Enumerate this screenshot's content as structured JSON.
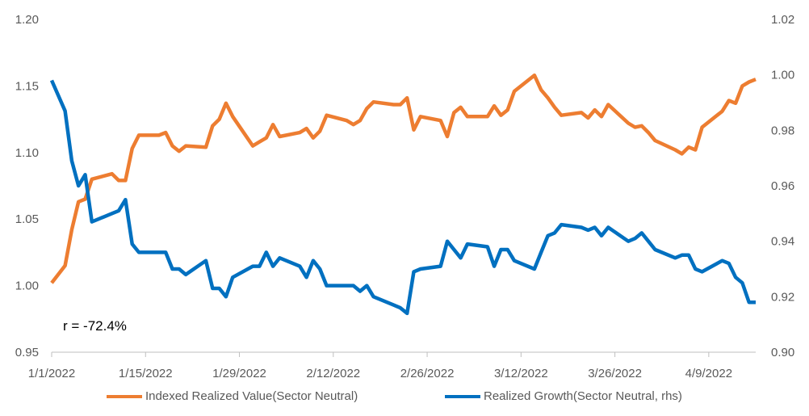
{
  "chart_data": {
    "type": "line",
    "title": "",
    "annotation": "r =   -72.4%",
    "x_tick_labels": [
      "1/1/2022",
      "1/15/2022",
      "1/29/2022",
      "2/12/2022",
      "2/26/2022",
      "3/12/2022",
      "3/26/2022",
      "4/9/2022"
    ],
    "xlim": [
      "2022-01-01",
      "2022-04-16"
    ],
    "y_left": {
      "ylim": [
        0.95,
        1.2
      ],
      "ticks": [
        "0.95",
        "1.00",
        "1.05",
        "1.10",
        "1.15",
        "1.20"
      ]
    },
    "y_right": {
      "ylim": [
        0.9,
        1.02
      ],
      "ticks": [
        "0.90",
        "0.92",
        "0.94",
        "0.96",
        "0.98",
        "1.00",
        "1.02"
      ]
    },
    "grid": false,
    "legend_position": "bottom",
    "series": [
      {
        "name": "Indexed Realized Value(Sector Neutral)",
        "color": "#ED7D31",
        "axis": "left",
        "points": [
          [
            "2022-01-01",
            1.002
          ],
          [
            "2022-01-03",
            1.015
          ],
          [
            "2022-01-04",
            1.042
          ],
          [
            "2022-01-05",
            1.063
          ],
          [
            "2022-01-06",
            1.065
          ],
          [
            "2022-01-07",
            1.08
          ],
          [
            "2022-01-10",
            1.084
          ],
          [
            "2022-01-11",
            1.079
          ],
          [
            "2022-01-12",
            1.079
          ],
          [
            "2022-01-13",
            1.103
          ],
          [
            "2022-01-14",
            1.113
          ],
          [
            "2022-01-17",
            1.113
          ],
          [
            "2022-01-18",
            1.115
          ],
          [
            "2022-01-19",
            1.105
          ],
          [
            "2022-01-20",
            1.101
          ],
          [
            "2022-01-21",
            1.105
          ],
          [
            "2022-01-24",
            1.104
          ],
          [
            "2022-01-25",
            1.12
          ],
          [
            "2022-01-26",
            1.125
          ],
          [
            "2022-01-27",
            1.137
          ],
          [
            "2022-01-28",
            1.127
          ],
          [
            "2022-01-31",
            1.105
          ],
          [
            "2022-02-01",
            1.108
          ],
          [
            "2022-02-02",
            1.111
          ],
          [
            "2022-02-03",
            1.121
          ],
          [
            "2022-02-04",
            1.112
          ],
          [
            "2022-02-07",
            1.115
          ],
          [
            "2022-02-08",
            1.118
          ],
          [
            "2022-02-09",
            1.111
          ],
          [
            "2022-02-10",
            1.116
          ],
          [
            "2022-02-11",
            1.128
          ],
          [
            "2022-02-14",
            1.124
          ],
          [
            "2022-02-15",
            1.121
          ],
          [
            "2022-02-16",
            1.124
          ],
          [
            "2022-02-17",
            1.133
          ],
          [
            "2022-02-18",
            1.138
          ],
          [
            "2022-02-21",
            1.136
          ],
          [
            "2022-02-22",
            1.136
          ],
          [
            "2022-02-23",
            1.141
          ],
          [
            "2022-02-24",
            1.117
          ],
          [
            "2022-02-25",
            1.127
          ],
          [
            "2022-02-28",
            1.124
          ],
          [
            "2022-03-01",
            1.112
          ],
          [
            "2022-03-02",
            1.13
          ],
          [
            "2022-03-03",
            1.134
          ],
          [
            "2022-03-04",
            1.127
          ],
          [
            "2022-03-07",
            1.127
          ],
          [
            "2022-03-08",
            1.135
          ],
          [
            "2022-03-09",
            1.128
          ],
          [
            "2022-03-10",
            1.132
          ],
          [
            "2022-03-11",
            1.146
          ],
          [
            "2022-03-14",
            1.158
          ],
          [
            "2022-03-15",
            1.147
          ],
          [
            "2022-03-16",
            1.141
          ],
          [
            "2022-03-17",
            1.134
          ],
          [
            "2022-03-18",
            1.128
          ],
          [
            "2022-03-21",
            1.13
          ],
          [
            "2022-03-22",
            1.126
          ],
          [
            "2022-03-23",
            1.132
          ],
          [
            "2022-03-24",
            1.127
          ],
          [
            "2022-03-25",
            1.136
          ],
          [
            "2022-03-28",
            1.122
          ],
          [
            "2022-03-29",
            1.119
          ],
          [
            "2022-03-30",
            1.12
          ],
          [
            "2022-03-31",
            1.115
          ],
          [
            "2022-04-01",
            1.109
          ],
          [
            "2022-04-04",
            1.102
          ],
          [
            "2022-04-05",
            1.099
          ],
          [
            "2022-04-06",
            1.104
          ],
          [
            "2022-04-07",
            1.102
          ],
          [
            "2022-04-08",
            1.119
          ],
          [
            "2022-04-11",
            1.131
          ],
          [
            "2022-04-12",
            1.139
          ],
          [
            "2022-04-13",
            1.137
          ],
          [
            "2022-04-14",
            1.15
          ],
          [
            "2022-04-15",
            1.153
          ],
          [
            "2022-04-16",
            1.155
          ]
        ]
      },
      {
        "name": "Realized Growth(Sector Neutral, rhs)",
        "color": "#0070C0",
        "axis": "right",
        "points": [
          [
            "2022-01-01",
            0.998
          ],
          [
            "2022-01-03",
            0.987
          ],
          [
            "2022-01-04",
            0.969
          ],
          [
            "2022-01-05",
            0.96
          ],
          [
            "2022-01-06",
            0.964
          ],
          [
            "2022-01-07",
            0.947
          ],
          [
            "2022-01-10",
            0.95
          ],
          [
            "2022-01-11",
            0.951
          ],
          [
            "2022-01-12",
            0.955
          ],
          [
            "2022-01-13",
            0.939
          ],
          [
            "2022-01-14",
            0.936
          ],
          [
            "2022-01-17",
            0.936
          ],
          [
            "2022-01-18",
            0.936
          ],
          [
            "2022-01-19",
            0.93
          ],
          [
            "2022-01-20",
            0.93
          ],
          [
            "2022-01-21",
            0.928
          ],
          [
            "2022-01-24",
            0.933
          ],
          [
            "2022-01-25",
            0.923
          ],
          [
            "2022-01-26",
            0.923
          ],
          [
            "2022-01-27",
            0.92
          ],
          [
            "2022-01-28",
            0.927
          ],
          [
            "2022-01-31",
            0.931
          ],
          [
            "2022-02-01",
            0.931
          ],
          [
            "2022-02-02",
            0.936
          ],
          [
            "2022-02-03",
            0.931
          ],
          [
            "2022-02-04",
            0.934
          ],
          [
            "2022-02-07",
            0.931
          ],
          [
            "2022-02-08",
            0.927
          ],
          [
            "2022-02-09",
            0.933
          ],
          [
            "2022-02-10",
            0.93
          ],
          [
            "2022-02-11",
            0.924
          ],
          [
            "2022-02-14",
            0.924
          ],
          [
            "2022-02-15",
            0.924
          ],
          [
            "2022-02-16",
            0.922
          ],
          [
            "2022-02-17",
            0.924
          ],
          [
            "2022-02-18",
            0.92
          ],
          [
            "2022-02-21",
            0.917
          ],
          [
            "2022-02-22",
            0.916
          ],
          [
            "2022-02-23",
            0.914
          ],
          [
            "2022-02-24",
            0.929
          ],
          [
            "2022-02-25",
            0.93
          ],
          [
            "2022-02-28",
            0.931
          ],
          [
            "2022-03-01",
            0.94
          ],
          [
            "2022-03-02",
            0.937
          ],
          [
            "2022-03-03",
            0.934
          ],
          [
            "2022-03-04",
            0.939
          ],
          [
            "2022-03-07",
            0.938
          ],
          [
            "2022-03-08",
            0.931
          ],
          [
            "2022-03-09",
            0.937
          ],
          [
            "2022-03-10",
            0.937
          ],
          [
            "2022-03-11",
            0.933
          ],
          [
            "2022-03-14",
            0.93
          ],
          [
            "2022-03-15",
            0.936
          ],
          [
            "2022-03-16",
            0.942
          ],
          [
            "2022-03-17",
            0.943
          ],
          [
            "2022-03-18",
            0.946
          ],
          [
            "2022-03-21",
            0.945
          ],
          [
            "2022-03-22",
            0.944
          ],
          [
            "2022-03-23",
            0.945
          ],
          [
            "2022-03-24",
            0.942
          ],
          [
            "2022-03-25",
            0.945
          ],
          [
            "2022-03-28",
            0.94
          ],
          [
            "2022-03-29",
            0.941
          ],
          [
            "2022-03-30",
            0.943
          ],
          [
            "2022-03-31",
            0.94
          ],
          [
            "2022-04-01",
            0.937
          ],
          [
            "2022-04-04",
            0.934
          ],
          [
            "2022-04-05",
            0.935
          ],
          [
            "2022-04-06",
            0.935
          ],
          [
            "2022-04-07",
            0.93
          ],
          [
            "2022-04-08",
            0.929
          ],
          [
            "2022-04-11",
            0.933
          ],
          [
            "2022-04-12",
            0.932
          ],
          [
            "2022-04-13",
            0.927
          ],
          [
            "2022-04-14",
            0.925
          ],
          [
            "2022-04-15",
            0.918
          ],
          [
            "2022-04-16",
            0.918
          ]
        ]
      }
    ]
  }
}
